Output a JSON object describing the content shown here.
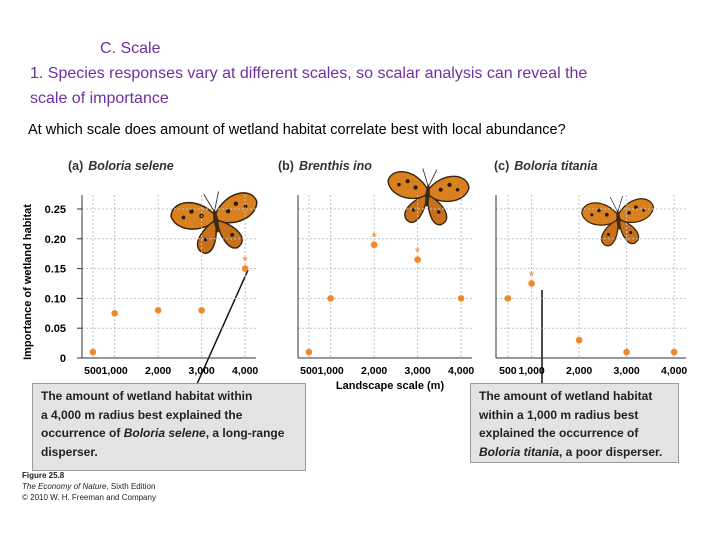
{
  "header": {
    "section": "C. Scale",
    "lines": [
      "1. Species responses vary at different scales, so scalar analysis can reveal the",
      "scale of importance"
    ],
    "question": "At which scale does amount of wetland habitat correlate best with local abundance?"
  },
  "chart_data": [
    {
      "type": "scatter",
      "panel": "(a)",
      "title": "Boloria selene",
      "ylabel": "Importance of wetland habitat",
      "x": [
        500,
        1000,
        2000,
        3000,
        4000
      ],
      "values": [
        0.01,
        0.075,
        0.08,
        0.08,
        0.15
      ],
      "marked": [
        false,
        false,
        false,
        false,
        true
      ],
      "marker_label": "*",
      "color": "#f0892a",
      "xlim": [
        250,
        4250
      ],
      "ylim": [
        0,
        0.26
      ],
      "xticks": [
        500,
        {
          "value": 1000,
          "label": "1,000"
        },
        {
          "value": 2000,
          "label": "2,000"
        },
        {
          "value": 3000,
          "label": "3,000"
        },
        {
          "value": 4000,
          "label": "4,000"
        }
      ],
      "yticks": [
        0,
        0.05,
        {
          "value": 0.1,
          "label": "0.10"
        },
        0.15,
        {
          "value": 0.2,
          "label": "0.20"
        },
        0.25
      ],
      "ytick_labels": true,
      "grid": true
    },
    {
      "type": "scatter",
      "panel": "(b)",
      "title": "Brenthis ino",
      "xlabel": "Landscape scale (m)",
      "x": [
        500,
        1000,
        2000,
        3000,
        4000
      ],
      "values": [
        0.01,
        0.1,
        0.19,
        0.165,
        0.1
      ],
      "marked": [
        false,
        false,
        true,
        true,
        false
      ],
      "marker_label": "*",
      "color": "#f0892a",
      "xlim": [
        250,
        4250
      ],
      "ylim": [
        0,
        0.26
      ],
      "xticks": [
        500,
        {
          "value": 1000,
          "label": "1,000"
        },
        {
          "value": 2000,
          "label": "2,000"
        },
        {
          "value": 3000,
          "label": "3,000"
        },
        {
          "value": 4000,
          "label": "4,000"
        }
      ],
      "yticks": [
        0,
        0.05,
        0.1,
        0.15,
        0.2,
        0.25
      ],
      "ytick_labels": false,
      "grid": true
    },
    {
      "type": "scatter",
      "panel": "(c)",
      "title": "Boloria titania",
      "x": [
        500,
        1000,
        2000,
        3000,
        4000
      ],
      "values": [
        0.1,
        0.125,
        0.03,
        0.01,
        0.01
      ],
      "marked": [
        false,
        true,
        false,
        false,
        false
      ],
      "marker_label": "*",
      "color": "#f0892a",
      "xlim": [
        250,
        4250
      ],
      "ylim": [
        0,
        0.26
      ],
      "xticks": [
        500,
        {
          "value": 1000,
          "label": "1,000"
        },
        {
          "value": 2000,
          "label": "2,000"
        },
        {
          "value": 3000,
          "label": "3,000"
        },
        {
          "value": 4000,
          "label": "4,000"
        }
      ],
      "yticks": [
        0,
        0.05,
        0.1,
        0.15,
        0.2,
        0.25
      ],
      "ytick_labels": false,
      "grid": true
    }
  ],
  "callouts": [
    {
      "lines": [
        [
          "The amount of wetland habitat within"
        ],
        [
          "a 4,000 m radius best explained the"
        ],
        [
          "occurrence of ",
          "Boloria selene",
          ", a long-range"
        ],
        [
          "disperser."
        ]
      ],
      "italic": [
        "Boloria selene"
      ]
    },
    {
      "lines": [
        [
          "The amount of wetland habitat"
        ],
        [
          "within a 1,000 m radius best"
        ],
        [
          "explained the occurrence of"
        ],
        [
          "Boloria titania",
          ", a poor disperser."
        ]
      ],
      "italic": [
        "Boloria titania"
      ]
    }
  ],
  "credit": {
    "figure": "Figure 25.8",
    "book": "The Economy of Nature",
    "edition": ", Sixth Edition",
    "copyright": "© 2010 W. H. Freeman and Company"
  }
}
